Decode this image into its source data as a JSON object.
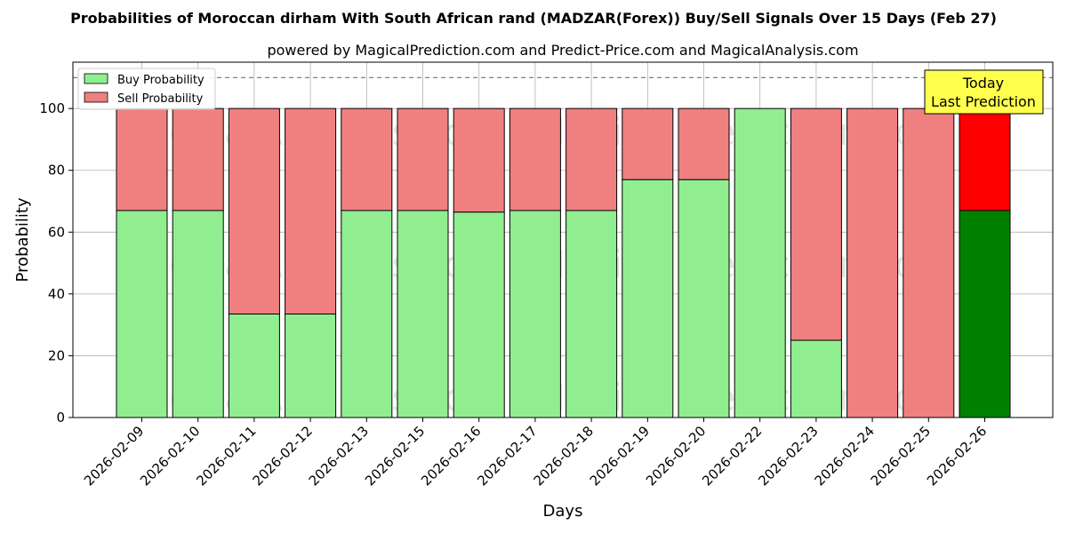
{
  "chart_data": {
    "type": "bar",
    "stacked": true,
    "title": "Probabilities of Moroccan dirham With South African rand (MADZAR(Forex)) Buy/Sell Signals Over 15 Days (Feb 27)",
    "subtitle": "powered by MagicalPrediction.com and Predict-Price.com and MagicalAnalysis.com",
    "xlabel": "Days",
    "ylabel": "Probability",
    "ylim": [
      0,
      115
    ],
    "yticks": [
      0,
      20,
      40,
      60,
      80,
      100
    ],
    "grid": true,
    "legend_position": "top-left",
    "reference_line": 110,
    "categories": [
      "2026-02-09",
      "2026-02-10",
      "2026-02-11",
      "2026-02-12",
      "2026-02-13",
      "2026-02-15",
      "2026-02-16",
      "2026-02-17",
      "2026-02-18",
      "2026-02-19",
      "2026-02-20",
      "2026-02-22",
      "2026-02-23",
      "2026-02-24",
      "2026-02-25",
      "2026-02-26"
    ],
    "series": [
      {
        "name": "Buy Probability",
        "color": "#90ee90",
        "values": [
          67,
          67,
          33.5,
          33.5,
          67,
          67,
          66.5,
          67,
          67,
          77,
          77,
          100,
          25,
          0,
          0,
          67
        ]
      },
      {
        "name": "Sell Probability",
        "color": "#f08080",
        "values": [
          33,
          33,
          66.5,
          66.5,
          33,
          33,
          33.5,
          33,
          33,
          23,
          23,
          0,
          75,
          100,
          100,
          33
        ]
      }
    ],
    "highlight": {
      "index": 15,
      "buy_color": "#008000",
      "sell_color": "#ff0000"
    },
    "annotation": {
      "lines": [
        "Today",
        "Last Prediction"
      ],
      "background": "#ffff4d"
    },
    "watermarks": [
      "MagicalAnalysis.com",
      "MagicalPrediction.com"
    ]
  }
}
